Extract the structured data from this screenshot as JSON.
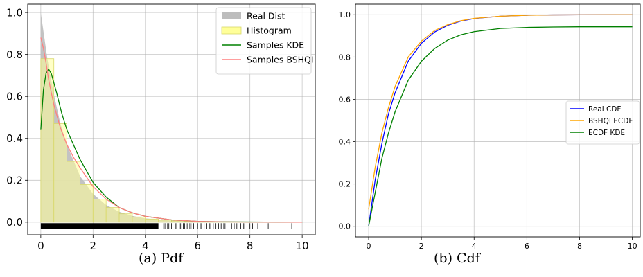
{
  "captions": {
    "pdf": "(a) Pdf",
    "cdf": "(b) Cdf"
  },
  "chart_data": [
    {
      "type": "line",
      "title": "",
      "xlabel": "",
      "ylabel": "",
      "xlim": [
        -0.5,
        10.5
      ],
      "ylim": [
        -0.06,
        1.04
      ],
      "xticks": [
        0,
        2,
        4,
        6,
        8,
        10
      ],
      "yticks": [
        0.0,
        0.2,
        0.4,
        0.6,
        0.8,
        1.0
      ],
      "grid": true,
      "legend_position": "top-right",
      "legend": [
        "Real Dist",
        "Histogram",
        "Samples KDE",
        "Samples BSHQI"
      ],
      "colors": {
        "real": "#bdbdbd",
        "hist_fill": "#ffff99",
        "hist_edge": "#d8d86a",
        "kde": "#008000",
        "bshqi": "#ff7f7f",
        "rug": "#000000"
      },
      "real_dist": {
        "name": "Real Dist",
        "x": [
          0,
          0.25,
          0.5,
          0.75,
          1,
          1.5,
          2,
          2.5,
          3,
          3.5,
          4,
          5,
          6,
          7,
          8,
          9,
          10
        ],
        "y": [
          1.0,
          0.78,
          0.61,
          0.47,
          0.37,
          0.22,
          0.135,
          0.082,
          0.05,
          0.03,
          0.018,
          0.007,
          0.0025,
          0.0009,
          0.0003,
          0.0001,
          0.0
        ]
      },
      "histogram": {
        "name": "Histogram",
        "bin_width": 0.5,
        "bin_starts": [
          0,
          0.5,
          1.0,
          1.5,
          2.0,
          2.5,
          3.0,
          3.5,
          4.0,
          4.5,
          5.0,
          5.5,
          6.0,
          6.5,
          7.0,
          7.5,
          8.0,
          8.5,
          9.0,
          9.5
        ],
        "heights": [
          0.78,
          0.47,
          0.29,
          0.18,
          0.11,
          0.07,
          0.04,
          0.025,
          0.015,
          0.01,
          0.006,
          0.004,
          0.002,
          0.0015,
          0.001,
          0.0008,
          0.0005,
          0.0003,
          0.0002,
          0.0001
        ]
      },
      "series": [
        {
          "name": "Samples KDE",
          "x": [
            0,
            0.1,
            0.2,
            0.3,
            0.4,
            0.6,
            0.8,
            1.0,
            1.25,
            1.5,
            2,
            2.5,
            3,
            3.5,
            4,
            5,
            6,
            7,
            8,
            9,
            10
          ],
          "y": [
            0.44,
            0.63,
            0.71,
            0.73,
            0.71,
            0.62,
            0.52,
            0.44,
            0.37,
            0.3,
            0.19,
            0.12,
            0.07,
            0.045,
            0.028,
            0.011,
            0.004,
            0.002,
            0.001,
            0.0005,
            0.0
          ]
        },
        {
          "name": "Samples BSHQI",
          "x": [
            0,
            0.1,
            0.2,
            0.3,
            0.5,
            0.75,
            1,
            1.25,
            1.5,
            2,
            2.5,
            3,
            3.5,
            4,
            5,
            6,
            7,
            8,
            9,
            10
          ],
          "y": [
            0.88,
            0.83,
            0.76,
            0.68,
            0.56,
            0.45,
            0.37,
            0.31,
            0.26,
            0.17,
            0.11,
            0.07,
            0.045,
            0.028,
            0.011,
            0.004,
            0.0015,
            0.0006,
            0.0002,
            0.0
          ]
        }
      ],
      "rug": {
        "y": -0.018,
        "dense_range": [
          0,
          4.5
        ],
        "points": [
          4.6,
          4.7,
          4.75,
          4.85,
          4.9,
          5.0,
          5.05,
          5.15,
          5.2,
          5.3,
          5.35,
          5.45,
          5.5,
          5.6,
          5.7,
          5.75,
          5.85,
          5.9,
          6.0,
          6.1,
          6.15,
          6.25,
          6.35,
          6.45,
          6.5,
          6.6,
          6.7,
          6.8,
          6.9,
          7.0,
          7.05,
          7.2,
          7.3,
          7.4,
          7.5,
          7.65,
          7.75,
          7.8,
          8.0,
          8.1,
          8.3,
          8.5,
          8.7,
          9.0,
          9.6,
          9.8
        ]
      }
    },
    {
      "type": "line",
      "title": "",
      "xlabel": "",
      "ylabel": "",
      "xlim": [
        -0.5,
        10.3
      ],
      "ylim": [
        -0.05,
        1.05
      ],
      "xticks": [
        0,
        2,
        4,
        6,
        8,
        10
      ],
      "yticks": [
        0.0,
        0.2,
        0.4,
        0.6,
        0.8,
        1.0
      ],
      "grid": true,
      "legend_position": "center-right",
      "series": [
        {
          "name": "Real CDF",
          "color": "#0000ff",
          "x": [
            0,
            0.25,
            0.5,
            0.75,
            1,
            1.5,
            2,
            2.5,
            3,
            3.5,
            4,
            5,
            6,
            7,
            8,
            10
          ],
          "y": [
            0.0,
            0.22,
            0.39,
            0.53,
            0.63,
            0.78,
            0.865,
            0.918,
            0.95,
            0.97,
            0.982,
            0.993,
            0.9975,
            0.999,
            0.9997,
            1.0
          ]
        },
        {
          "name": "BSHQI ECDF",
          "color": "#ffa500",
          "x": [
            0,
            0.25,
            0.5,
            0.75,
            1,
            1.5,
            2,
            2.5,
            3,
            3.5,
            4,
            5,
            6,
            7,
            8,
            10
          ],
          "y": [
            0.08,
            0.28,
            0.44,
            0.56,
            0.66,
            0.8,
            0.875,
            0.925,
            0.953,
            0.972,
            0.983,
            0.993,
            0.9975,
            0.999,
            0.9997,
            1.0
          ]
        },
        {
          "name": "ECDF KDE",
          "color": "#008000",
          "x": [
            0,
            0.25,
            0.5,
            0.75,
            1,
            1.5,
            2,
            2.5,
            3,
            3.5,
            4,
            5,
            6,
            7,
            8,
            10
          ],
          "y": [
            0.0,
            0.16,
            0.32,
            0.44,
            0.54,
            0.69,
            0.78,
            0.84,
            0.88,
            0.905,
            0.92,
            0.935,
            0.94,
            0.942,
            0.943,
            0.943
          ]
        }
      ]
    }
  ]
}
